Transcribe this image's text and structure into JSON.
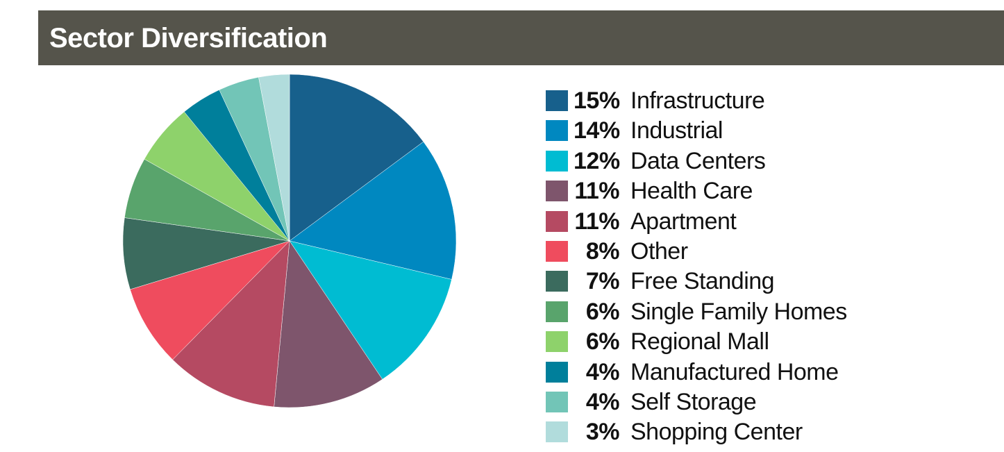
{
  "header": {
    "title": "Sector Diversification"
  },
  "chart_data": {
    "type": "pie",
    "title": "Sector Diversification",
    "legend_position": "right",
    "slices": [
      {
        "label": "Infrastructure",
        "value": 15,
        "display": "15%",
        "color": "#17608c"
      },
      {
        "label": "Industrial",
        "value": 14,
        "display": "14%",
        "color": "#0088c0"
      },
      {
        "label": "Data Centers",
        "value": 12,
        "display": "12%",
        "color": "#00bcd2"
      },
      {
        "label": "Health Care",
        "value": 11,
        "display": "11%",
        "color": "#7e556c"
      },
      {
        "label": "Apartment",
        "value": 11,
        "display": "11%",
        "color": "#b54a62"
      },
      {
        "label": "Other",
        "value": 8,
        "display": "8%",
        "color": "#ef4c5e"
      },
      {
        "label": "Free Standing",
        "value": 7,
        "display": "7%",
        "color": "#3b6b5e"
      },
      {
        "label": "Single Family Homes",
        "value": 6,
        "display": "6%",
        "color": "#59a46c"
      },
      {
        "label": "Regional Mall",
        "value": 6,
        "display": "6%",
        "color": "#8ed26b"
      },
      {
        "label": "Manufactured Home",
        "value": 4,
        "display": "4%",
        "color": "#007f9b"
      },
      {
        "label": "Self Storage",
        "value": 4,
        "display": "4%",
        "color": "#72c5b7"
      },
      {
        "label": "Shopping Center",
        "value": 3,
        "display": "3%",
        "color": "#b1dcdc"
      }
    ]
  }
}
